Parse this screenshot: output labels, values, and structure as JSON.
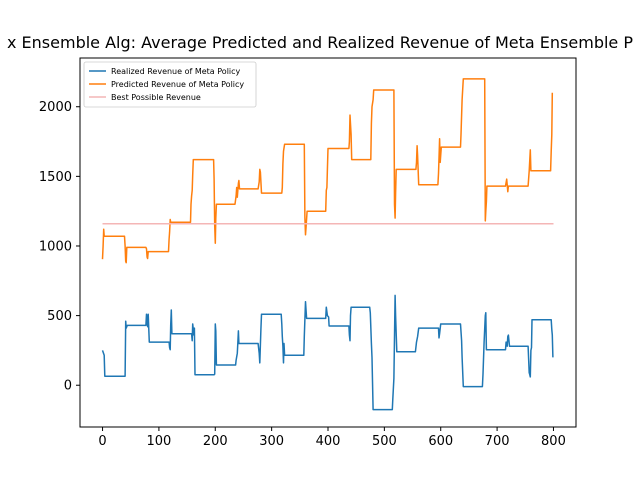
{
  "chart_data": {
    "type": "line",
    "title": "x Ensemble Alg: Average Predicted and Realized Revenue of Meta Ensemble P",
    "xlabel": "",
    "ylabel": "",
    "xlim": [
      -40,
      840
    ],
    "ylim": [
      -300,
      2350
    ],
    "x_ticks": [
      0,
      100,
      200,
      300,
      400,
      500,
      600,
      700,
      800
    ],
    "y_ticks": [
      0,
      500,
      1000,
      1500,
      2000
    ],
    "x_tick_labels": [
      "0",
      "100",
      "200",
      "300",
      "400",
      "500",
      "600",
      "700",
      "800"
    ],
    "y_tick_labels": [
      "0",
      "500",
      "1000",
      "1500",
      "2000"
    ],
    "grid": false,
    "legend_position": "top-left",
    "series": [
      {
        "name": "Realized Revenue of Meta Policy",
        "color": "#1f77b4",
        "points": [
          [
            0,
            250
          ],
          [
            3,
            215
          ],
          [
            4,
            65
          ],
          [
            40,
            65
          ],
          [
            41,
            460
          ],
          [
            42,
            410
          ],
          [
            44,
            430
          ],
          [
            77,
            430
          ],
          [
            78,
            510
          ],
          [
            80,
            420
          ],
          [
            81,
            510
          ],
          [
            83,
            310
          ],
          [
            118,
            310
          ],
          [
            119,
            270
          ],
          [
            120,
            255
          ],
          [
            121,
            430
          ],
          [
            122,
            540
          ],
          [
            123,
            370
          ],
          [
            158,
            370
          ],
          [
            159,
            320
          ],
          [
            160,
            440
          ],
          [
            162,
            360
          ],
          [
            163,
            410
          ],
          [
            164,
            75
          ],
          [
            198,
            75
          ],
          [
            199,
            80
          ],
          [
            200,
            440
          ],
          [
            201,
            390
          ],
          [
            202,
            145
          ],
          [
            236,
            145
          ],
          [
            237,
            180
          ],
          [
            239,
            230
          ],
          [
            240,
            300
          ],
          [
            241,
            390
          ],
          [
            242,
            300
          ],
          [
            276,
            300
          ],
          [
            278,
            230
          ],
          [
            279,
            160
          ],
          [
            281,
            400
          ],
          [
            282,
            510
          ],
          [
            317,
            510
          ],
          [
            318,
            440
          ],
          [
            319,
            350
          ],
          [
            320,
            280
          ],
          [
            321,
            160
          ],
          [
            322,
            300
          ],
          [
            323,
            215
          ],
          [
            357,
            215
          ],
          [
            358,
            350
          ],
          [
            360,
            600
          ],
          [
            362,
            480
          ],
          [
            396,
            480
          ],
          [
            397,
            560
          ],
          [
            399,
            500
          ],
          [
            401,
            490
          ],
          [
            402,
            425
          ],
          [
            437,
            425
          ],
          [
            438,
            360
          ],
          [
            439,
            320
          ],
          [
            440,
            500
          ],
          [
            441,
            560
          ],
          [
            474,
            560
          ],
          [
            475,
            520
          ],
          [
            477,
            300
          ],
          [
            478,
            200
          ],
          [
            480,
            -175
          ],
          [
            514,
            -175
          ],
          [
            515,
            -100
          ],
          [
            517,
            50
          ],
          [
            519,
            645
          ],
          [
            520,
            500
          ],
          [
            522,
            240
          ],
          [
            555,
            240
          ],
          [
            557,
            310
          ],
          [
            559,
            350
          ],
          [
            561,
            410
          ],
          [
            596,
            410
          ],
          [
            597,
            340
          ],
          [
            598,
            370
          ],
          [
            600,
            440
          ],
          [
            635,
            440
          ],
          [
            637,
            320
          ],
          [
            638,
            200
          ],
          [
            640,
            -10
          ],
          [
            674,
            -10
          ],
          [
            675,
            80
          ],
          [
            677,
            310
          ],
          [
            679,
            500
          ],
          [
            680,
            520
          ],
          [
            681,
            255
          ],
          [
            715,
            255
          ],
          [
            716,
            310
          ],
          [
            718,
            280
          ],
          [
            719,
            350
          ],
          [
            720,
            360
          ],
          [
            722,
            280
          ],
          [
            755,
            280
          ],
          [
            757,
            90
          ],
          [
            758,
            75
          ],
          [
            759,
            60
          ],
          [
            760,
            250
          ],
          [
            761,
            270
          ],
          [
            762,
            470
          ],
          [
            796,
            470
          ],
          [
            797,
            400
          ],
          [
            798,
            360
          ],
          [
            799,
            200
          ]
        ]
      },
      {
        "name": "Predicted Revenue of Meta Policy",
        "color": "#ff7f0e",
        "points": [
          [
            0,
            905
          ],
          [
            1,
            1000
          ],
          [
            2,
            1120
          ],
          [
            3,
            1070
          ],
          [
            39,
            1070
          ],
          [
            40,
            1000
          ],
          [
            41,
            890
          ],
          [
            42,
            880
          ],
          [
            43,
            990
          ],
          [
            77,
            990
          ],
          [
            78,
            980
          ],
          [
            79,
            920
          ],
          [
            80,
            910
          ],
          [
            81,
            960
          ],
          [
            117,
            960
          ],
          [
            118,
            1050
          ],
          [
            119,
            1100
          ],
          [
            120,
            1190
          ],
          [
            121,
            1170
          ],
          [
            156,
            1170
          ],
          [
            157,
            1300
          ],
          [
            158,
            1360
          ],
          [
            159,
            1400
          ],
          [
            160,
            1510
          ],
          [
            161,
            1620
          ],
          [
            197,
            1620
          ],
          [
            198,
            1480
          ],
          [
            199,
            1150
          ],
          [
            200,
            1020
          ],
          [
            201,
            1200
          ],
          [
            202,
            1300
          ],
          [
            235,
            1300
          ],
          [
            237,
            1360
          ],
          [
            238,
            1420
          ],
          [
            239,
            1350
          ],
          [
            241,
            1450
          ],
          [
            242,
            1470
          ],
          [
            243,
            1410
          ],
          [
            276,
            1410
          ],
          [
            278,
            1460
          ],
          [
            279,
            1550
          ],
          [
            280,
            1530
          ],
          [
            282,
            1380
          ],
          [
            318,
            1380
          ],
          [
            319,
            1420
          ],
          [
            320,
            1590
          ],
          [
            321,
            1680
          ],
          [
            323,
            1730
          ],
          [
            358,
            1730
          ],
          [
            359,
            1200
          ],
          [
            360,
            1080
          ],
          [
            361,
            1130
          ],
          [
            363,
            1250
          ],
          [
            396,
            1250
          ],
          [
            397,
            1400
          ],
          [
            398,
            1420
          ],
          [
            399,
            1550
          ],
          [
            400,
            1700
          ],
          [
            437,
            1700
          ],
          [
            438,
            1750
          ],
          [
            439,
            1940
          ],
          [
            441,
            1800
          ],
          [
            442,
            1620
          ],
          [
            476,
            1620
          ],
          [
            477,
            1880
          ],
          [
            478,
            2000
          ],
          [
            480,
            2050
          ],
          [
            481,
            2120
          ],
          [
            517,
            2120
          ],
          [
            518,
            1300
          ],
          [
            519,
            1200
          ],
          [
            520,
            1380
          ],
          [
            521,
            1550
          ],
          [
            556,
            1550
          ],
          [
            557,
            1600
          ],
          [
            558,
            1720
          ],
          [
            559,
            1650
          ],
          [
            561,
            1440
          ],
          [
            595,
            1440
          ],
          [
            596,
            1520
          ],
          [
            597,
            1630
          ],
          [
            598,
            1770
          ],
          [
            599,
            1600
          ],
          [
            601,
            1710
          ],
          [
            635,
            1710
          ],
          [
            636,
            1800
          ],
          [
            638,
            2050
          ],
          [
            640,
            2200
          ],
          [
            678,
            2200
          ],
          [
            679,
            1180
          ],
          [
            680,
            1250
          ],
          [
            681,
            1320
          ],
          [
            682,
            1430
          ],
          [
            715,
            1430
          ],
          [
            717,
            1480
          ],
          [
            718,
            1440
          ],
          [
            719,
            1390
          ],
          [
            720,
            1430
          ],
          [
            755,
            1430
          ],
          [
            757,
            1540
          ],
          [
            758,
            1620
          ],
          [
            759,
            1690
          ],
          [
            760,
            1540
          ],
          [
            795,
            1540
          ],
          [
            796,
            1680
          ],
          [
            797,
            1800
          ],
          [
            798,
            2100
          ]
        ]
      },
      {
        "name": "Best Possible Revenue",
        "color": "#f4b6b6",
        "points": [
          [
            0,
            1160
          ],
          [
            800,
            1160
          ]
        ]
      }
    ]
  }
}
